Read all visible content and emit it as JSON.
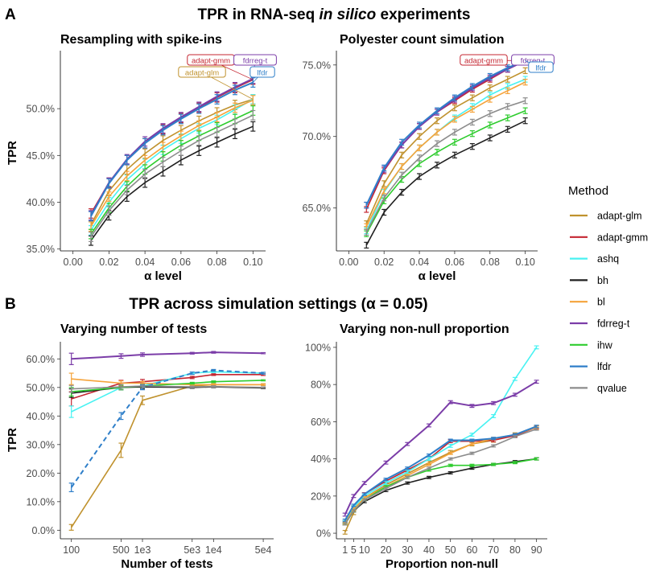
{
  "section_a": {
    "letter": "A",
    "title_prefix": "TPR in RNA-seq ",
    "title_italic": "in silico",
    "title_suffix": " experiments"
  },
  "section_b": {
    "letter": "B",
    "title": "TPR across simulation settings (α = 0.05)"
  },
  "legend": {
    "title": "Method",
    "items": [
      {
        "label": "adapt-glm",
        "color": "#C0922E"
      },
      {
        "label": "adapt-gmm",
        "color": "#C42631"
      },
      {
        "label": "ashq",
        "color": "#48F2F2"
      },
      {
        "label": "bh",
        "color": "#1F1F1F"
      },
      {
        "label": "bl",
        "color": "#F5A33A"
      },
      {
        "label": "fdrreg-t",
        "color": "#7B3DA8"
      },
      {
        "label": "ihw",
        "color": "#2ECC2E"
      },
      {
        "label": "lfdr",
        "color": "#2F7FC9"
      },
      {
        "label": "qvalue",
        "color": "#8C8C8C"
      }
    ]
  },
  "chart_data": [
    {
      "id": "p1",
      "type": "line",
      "title": "Resampling with spike-ins",
      "xlabel": "α level",
      "ylabel": "TPR",
      "xlim": [
        -0.007,
        0.107
      ],
      "ylim": [
        34.8,
        56.2
      ],
      "x_ticks": [
        0.0,
        0.02,
        0.04,
        0.06,
        0.08,
        0.1
      ],
      "x_tick_labels": [
        "0.00",
        "0.02",
        "0.04",
        "0.06",
        "0.08",
        "0.10"
      ],
      "y_ticks": [
        35,
        40,
        45,
        50
      ],
      "y_tick_labels": [
        "35.0%",
        "40.0%",
        "45.0%",
        "50.0%"
      ],
      "x": [
        0.01,
        0.02,
        0.03,
        0.04,
        0.05,
        0.06,
        0.07,
        0.08,
        0.09,
        0.1
      ],
      "series": [
        {
          "name": "adapt-glm",
          "values": [
            37.6,
            41.2,
            43.5,
            45.2,
            46.6,
            47.7,
            48.7,
            49.6,
            50.4,
            51.0
          ],
          "err": 0.5
        },
        {
          "name": "adapt-gmm",
          "values": [
            38.8,
            42.1,
            44.5,
            46.3,
            47.8,
            49.0,
            50.1,
            51.2,
            52.2,
            53.1
          ],
          "err": 0.5
        },
        {
          "name": "ashq",
          "values": [
            37.0,
            40.0,
            42.4,
            44.1,
            45.6,
            46.8,
            47.9,
            48.8,
            49.9,
            51.0
          ],
          "err": 0.5
        },
        {
          "name": "bh",
          "values": [
            35.9,
            38.6,
            40.6,
            42.1,
            43.3,
            44.5,
            45.5,
            46.4,
            47.3,
            48.1
          ],
          "err": 0.5
        },
        {
          "name": "bl",
          "values": [
            37.4,
            40.6,
            42.8,
            44.5,
            45.9,
            47.1,
            48.2,
            49.1,
            50.1,
            50.9
          ],
          "err": 0.5
        },
        {
          "name": "fdrreg-t",
          "values": [
            38.6,
            42.1,
            44.6,
            46.5,
            47.9,
            49.1,
            50.2,
            51.3,
            52.3,
            53.2
          ],
          "err": 0.5
        },
        {
          "name": "ihw",
          "values": [
            36.6,
            39.4,
            41.7,
            43.5,
            44.9,
            46.1,
            47.1,
            48.0,
            48.9,
            49.8
          ],
          "err": 0.5
        },
        {
          "name": "lfdr",
          "values": [
            38.5,
            42.0,
            44.5,
            46.3,
            47.7,
            48.9,
            50.0,
            51.0,
            52.0,
            52.8
          ],
          "err": 0.5
        },
        {
          "name": "qvalue",
          "values": [
            36.3,
            39.1,
            41.3,
            43.0,
            44.3,
            45.5,
            46.6,
            47.5,
            48.4,
            49.3
          ],
          "err": 0.5
        }
      ],
      "labels": [
        {
          "text": "adapt-gmm",
          "series": "adapt-gmm"
        },
        {
          "text": "fdrreg-t",
          "series": "fdrreg-t"
        },
        {
          "text": "adapt-glm",
          "series": "adapt-glm"
        },
        {
          "text": "lfdr",
          "series": "lfdr"
        }
      ]
    },
    {
      "id": "p2",
      "type": "line",
      "title": "Polyester count simulation",
      "xlabel": "α level",
      "ylabel": "",
      "xlim": [
        -0.007,
        0.107
      ],
      "ylim": [
        62.0,
        76.0
      ],
      "x_ticks": [
        0.0,
        0.02,
        0.04,
        0.06,
        0.08,
        0.1
      ],
      "x_tick_labels": [
        "0.00",
        "0.02",
        "0.04",
        "0.06",
        "0.08",
        "0.10"
      ],
      "y_ticks": [
        65,
        70,
        75
      ],
      "y_tick_labels": [
        "65.0%",
        "70.0%",
        "75.0%"
      ],
      "x": [
        0.01,
        0.02,
        0.03,
        0.04,
        0.05,
        0.06,
        0.07,
        0.08,
        0.09,
        0.1
      ],
      "series": [
        {
          "name": "adapt-glm",
          "values": [
            63.9,
            66.7,
            68.7,
            70.0,
            71.1,
            72.0,
            72.7,
            73.4,
            74.0,
            74.6
          ],
          "err": 0.2
        },
        {
          "name": "adapt-gmm",
          "values": [
            64.9,
            67.6,
            69.4,
            70.7,
            71.7,
            72.5,
            73.3,
            74.0,
            74.7,
            75.3
          ],
          "err": 0.2
        },
        {
          "name": "ashq",
          "values": [
            63.4,
            66.1,
            67.9,
            69.2,
            70.3,
            71.3,
            72.1,
            72.9,
            73.5,
            74.0
          ],
          "err": 0.2
        },
        {
          "name": "bh",
          "values": [
            62.4,
            64.7,
            66.1,
            67.2,
            68.0,
            68.7,
            69.3,
            69.9,
            70.5,
            71.1
          ],
          "err": 0.2
        },
        {
          "name": "bl",
          "values": [
            63.7,
            66.2,
            67.9,
            69.2,
            70.3,
            71.2,
            71.9,
            72.6,
            73.2,
            73.8
          ],
          "err": 0.2
        },
        {
          "name": "fdrreg-t",
          "values": [
            65.2,
            67.7,
            69.4,
            70.7,
            71.7,
            72.6,
            73.4,
            74.1,
            74.7,
            75.3
          ],
          "err": 0.2
        },
        {
          "name": "ihw",
          "values": [
            63.2,
            65.5,
            67.0,
            68.1,
            68.9,
            69.6,
            70.2,
            70.8,
            71.3,
            71.8
          ],
          "err": 0.2
        },
        {
          "name": "lfdr",
          "values": [
            65.2,
            67.8,
            69.6,
            70.8,
            71.8,
            72.7,
            73.5,
            74.2,
            74.8,
            75.3
          ],
          "err": 0.2
        },
        {
          "name": "qvalue",
          "values": [
            63.3,
            65.7,
            67.3,
            68.5,
            69.5,
            70.3,
            71.0,
            71.6,
            72.1,
            72.5
          ],
          "err": 0.2
        }
      ],
      "labels": [
        {
          "text": "adapt-gmm",
          "series": "adapt-gmm"
        },
        {
          "text": "fdrreg-t",
          "series": "fdrreg-t"
        },
        {
          "text": "lfdr",
          "series": "lfdr"
        }
      ]
    },
    {
      "id": "p3",
      "type": "line",
      "title": "Varying number of tests",
      "xlabel": "Number of tests",
      "ylabel": "TPR",
      "xscale": "log",
      "xlim": [
        70,
        70000
      ],
      "ylim": [
        -3,
        66
      ],
      "x_ticks": [
        100,
        500,
        1000,
        5000,
        10000,
        50000
      ],
      "x_tick_labels": [
        "100",
        "500",
        "1e3",
        "5e3",
        "1e4",
        "5e4"
      ],
      "y_ticks": [
        0,
        10,
        20,
        30,
        40,
        50,
        60
      ],
      "y_tick_labels": [
        "0.0%",
        "10.0%",
        "20.0%",
        "30.0%",
        "40.0%",
        "50.0%",
        "60.0%"
      ],
      "x": [
        100,
        500,
        1000,
        5000,
        10000,
        50000
      ],
      "series": [
        {
          "name": "adapt-glm",
          "values": [
            1.0,
            28.0,
            45.5,
            50.5,
            51.0,
            51.0
          ],
          "err": [
            1.0,
            2.5,
            1.5,
            0.4,
            0.3,
            0.3
          ]
        },
        {
          "name": "adapt-gmm",
          "values": [
            46.0,
            51.5,
            52.0,
            53.5,
            54.5,
            54.5
          ],
          "err": [
            2.5,
            1.0,
            0.8,
            0.4,
            0.3,
            0.3
          ]
        },
        {
          "name": "ashq",
          "values": [
            41.5,
            50.0,
            50.5,
            55.0,
            55.5,
            55.0
          ],
          "err": [
            2.0,
            0.8,
            0.6,
            0.4,
            0.3,
            0.3
          ]
        },
        {
          "name": "bh",
          "values": [
            48.0,
            50.0,
            50.2,
            50.0,
            50.2,
            49.8
          ],
          "err": [
            1.5,
            0.8,
            0.6,
            0.3,
            0.3,
            0.2
          ]
        },
        {
          "name": "bl",
          "values": [
            53.0,
            51.5,
            51.5,
            51.0,
            51.0,
            51.0
          ],
          "err": [
            2.0,
            0.8,
            0.6,
            0.3,
            0.3,
            0.2
          ]
        },
        {
          "name": "fdrreg-t",
          "values": [
            60.0,
            61.0,
            61.5,
            62.0,
            62.3,
            62.0
          ],
          "err": [
            2.0,
            0.8,
            0.6,
            0.3,
            0.3,
            0.2
          ]
        },
        {
          "name": "ihw",
          "values": [
            48.5,
            50.0,
            50.5,
            51.5,
            52.0,
            52.5
          ],
          "err": [
            1.5,
            0.8,
            0.6,
            0.3,
            0.3,
            0.2
          ]
        },
        {
          "name": "lfdr",
          "values": [
            15.0,
            40.0,
            50.0,
            55.0,
            56.0,
            55.0
          ],
          "err": [
            1.5,
            1.2,
            0.8,
            0.4,
            0.3,
            0.3
          ],
          "dashed": true
        },
        {
          "name": "qvalue",
          "values": [
            49.5,
            50.2,
            50.5,
            50.2,
            50.3,
            50.0
          ],
          "err": [
            1.2,
            0.8,
            0.6,
            0.3,
            0.3,
            0.2
          ]
        }
      ]
    },
    {
      "id": "p4",
      "type": "line",
      "title": "Varying non-null proportion",
      "xlabel": "Proportion non-null",
      "ylabel": "",
      "xlim": [
        -3,
        95
      ],
      "ylim": [
        -3,
        103
      ],
      "x_ticks": [
        1,
        5,
        10,
        20,
        30,
        40,
        50,
        60,
        70,
        80,
        90
      ],
      "x_tick_labels": [
        "1",
        "5",
        "10",
        "20",
        "30",
        "40",
        "50",
        "60",
        "70",
        "80",
        "90"
      ],
      "y_ticks": [
        0,
        20,
        40,
        60,
        80,
        100
      ],
      "y_tick_labels": [
        "0%",
        "20%",
        "40%",
        "60%",
        "80%",
        "100%"
      ],
      "x": [
        1,
        5,
        10,
        20,
        30,
        40,
        50,
        60,
        70,
        80,
        90
      ],
      "series": [
        {
          "name": "adapt-glm",
          "values": [
            0.5,
            11.0,
            19.0,
            26.0,
            32.0,
            38.0,
            43.5,
            48.0,
            50.0,
            53.0,
            57.0
          ],
          "err": 1.0
        },
        {
          "name": "adapt-gmm",
          "values": [
            6.0,
            14.0,
            21.0,
            28.0,
            34.0,
            40.0,
            49.5,
            49.5,
            50.0,
            52.5,
            57.0
          ],
          "err": 0.8
        },
        {
          "name": "ashq",
          "values": [
            6.0,
            14.0,
            20.0,
            27.0,
            33.0,
            40.0,
            47.0,
            53.0,
            63.0,
            83.0,
            100.0
          ],
          "err": 0.8
        },
        {
          "name": "bh",
          "values": [
            5.0,
            12.0,
            17.0,
            23.0,
            27.0,
            30.0,
            32.5,
            35.0,
            37.0,
            38.5,
            40.0
          ],
          "err": 0.6
        },
        {
          "name": "bl",
          "values": [
            5.5,
            13.0,
            19.0,
            25.0,
            31.0,
            37.0,
            43.0,
            48.0,
            51.0,
            53.0,
            57.0
          ],
          "err": 0.6
        },
        {
          "name": "fdrreg-t",
          "values": [
            10.0,
            20.0,
            27.0,
            38.0,
            48.0,
            58.0,
            70.5,
            68.5,
            70.0,
            74.5,
            81.5
          ],
          "err": 0.8
        },
        {
          "name": "ihw",
          "values": [
            5.0,
            12.0,
            18.0,
            25.0,
            30.0,
            34.0,
            36.5,
            36.5,
            37.0,
            38.0,
            40.0
          ],
          "err": 0.6
        },
        {
          "name": "lfdr",
          "values": [
            7.0,
            15.0,
            21.0,
            29.0,
            35.0,
            42.0,
            50.0,
            50.0,
            51.0,
            53.0,
            57.5
          ],
          "err": 0.6
        },
        {
          "name": "qvalue",
          "values": [
            5.0,
            12.0,
            18.0,
            24.0,
            30.0,
            35.0,
            40.0,
            43.0,
            47.0,
            52.0,
            56.0
          ],
          "err": 0.6
        }
      ]
    }
  ]
}
